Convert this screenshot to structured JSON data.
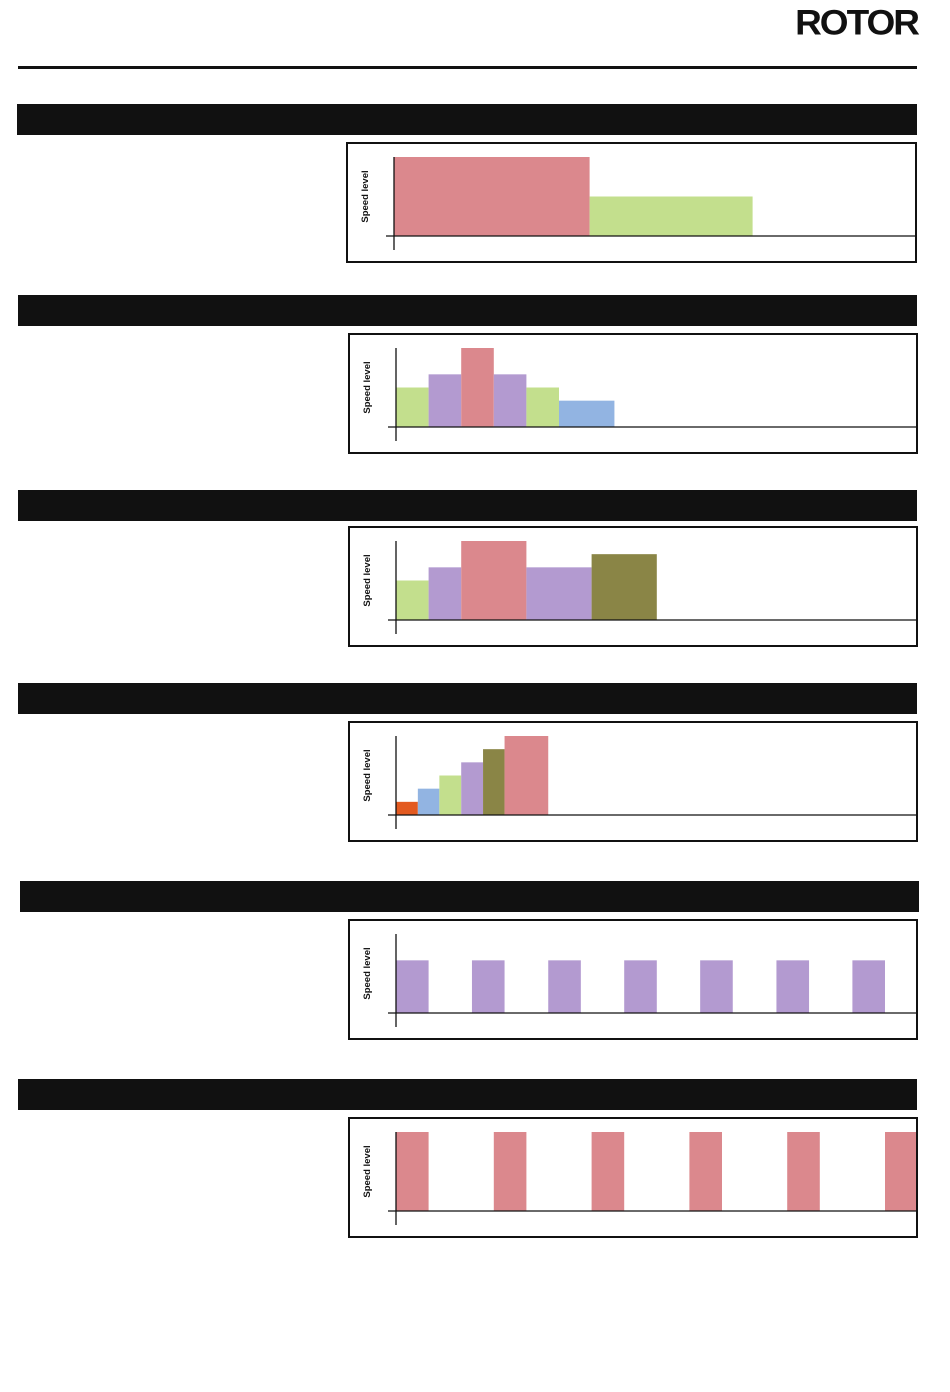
{
  "brand": {
    "logo_text": "ROTOR"
  },
  "colors": {
    "red": "#db888d",
    "green": "#c3df8d",
    "purple": "#b39ad0",
    "blue": "#92b4e2",
    "olive": "#8a8546",
    "orange": "#e35a20"
  },
  "chart_data": [
    {
      "type": "bar",
      "ylabel": "Speed level",
      "ylim": [
        0,
        6
      ],
      "segments": [
        {
          "start": 0,
          "end": 6,
          "level": 6,
          "color": "red"
        },
        {
          "start": 6,
          "end": 11,
          "level": 3,
          "color": "green"
        }
      ]
    },
    {
      "type": "bar",
      "ylabel": "Speed level",
      "ylim": [
        0,
        6
      ],
      "segments": [
        {
          "start": 0,
          "end": 1,
          "level": 3,
          "color": "green"
        },
        {
          "start": 1,
          "end": 2,
          "level": 4,
          "color": "purple"
        },
        {
          "start": 2,
          "end": 3,
          "level": 6,
          "color": "red"
        },
        {
          "start": 3,
          "end": 4,
          "level": 4,
          "color": "purple"
        },
        {
          "start": 4,
          "end": 5,
          "level": 3,
          "color": "green"
        },
        {
          "start": 5,
          "end": 6.7,
          "level": 2,
          "color": "blue"
        }
      ]
    },
    {
      "type": "bar",
      "ylabel": "Speed level",
      "ylim": [
        0,
        6
      ],
      "segments": [
        {
          "start": 0,
          "end": 1,
          "level": 3,
          "color": "green"
        },
        {
          "start": 1,
          "end": 2,
          "level": 4,
          "color": "purple"
        },
        {
          "start": 2,
          "end": 4,
          "level": 6,
          "color": "red"
        },
        {
          "start": 4,
          "end": 6,
          "level": 4,
          "color": "purple"
        },
        {
          "start": 6,
          "end": 8,
          "level": 5,
          "color": "olive"
        }
      ]
    },
    {
      "type": "bar",
      "ylabel": "Speed level",
      "ylim": [
        0,
        6
      ],
      "segments": [
        {
          "start": 0,
          "end": 0.67,
          "level": 1,
          "color": "orange"
        },
        {
          "start": 0.67,
          "end": 1.33,
          "level": 2,
          "color": "blue"
        },
        {
          "start": 1.33,
          "end": 2,
          "level": 3,
          "color": "green"
        },
        {
          "start": 2,
          "end": 2.67,
          "level": 4,
          "color": "purple"
        },
        {
          "start": 2.67,
          "end": 3.33,
          "level": 5,
          "color": "olive"
        },
        {
          "start": 3.33,
          "end": 4.67,
          "level": 6,
          "color": "red"
        }
      ]
    },
    {
      "type": "bar",
      "ylabel": "Speed level",
      "ylim": [
        0,
        6
      ],
      "segments": [
        {
          "start": 0,
          "end": 1,
          "level": 4,
          "color": "purple"
        },
        {
          "start": 2.33,
          "end": 3.33,
          "level": 4,
          "color": "purple"
        },
        {
          "start": 4.67,
          "end": 5.67,
          "level": 4,
          "color": "purple"
        },
        {
          "start": 7,
          "end": 8,
          "level": 4,
          "color": "purple"
        },
        {
          "start": 9.33,
          "end": 10.33,
          "level": 4,
          "color": "purple"
        },
        {
          "start": 11.67,
          "end": 12.67,
          "level": 4,
          "color": "purple"
        },
        {
          "start": 14,
          "end": 15,
          "level": 4,
          "color": "purple"
        }
      ]
    },
    {
      "type": "bar",
      "ylabel": "Speed level",
      "ylim": [
        0,
        6
      ],
      "segments": [
        {
          "start": 0,
          "end": 1,
          "level": 6,
          "color": "red"
        },
        {
          "start": 3,
          "end": 4,
          "level": 6,
          "color": "red"
        },
        {
          "start": 6,
          "end": 7,
          "level": 6,
          "color": "red"
        },
        {
          "start": 9,
          "end": 10,
          "level": 6,
          "color": "red"
        },
        {
          "start": 12,
          "end": 13,
          "level": 6,
          "color": "red"
        },
        {
          "start": 15,
          "end": 16,
          "level": 6,
          "color": "red"
        }
      ]
    }
  ]
}
